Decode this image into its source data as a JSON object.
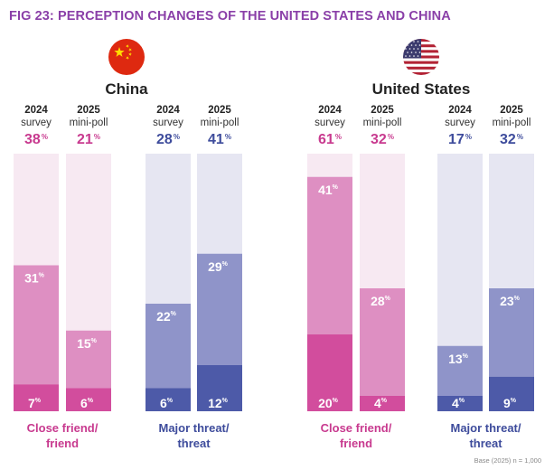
{
  "figure": {
    "title": "FIG 23: PERCEPTION CHANGES OF THE UNITED STATES AND CHINA",
    "base_note": "Base (2025) n = 1,000"
  },
  "colors": {
    "pink_light": "#f7e9f2",
    "pink_mid": "#de8fc2",
    "pink_dark": "#d24d9d",
    "pink_text": "#c83a8f",
    "blue_light": "#e6e6f2",
    "blue_mid": "#8f94c9",
    "blue_dark": "#4d5aa8",
    "blue_text": "#3e4c9c",
    "title": "#8a3fa8"
  },
  "panels": [
    {
      "country": "China",
      "flag_icon": "china-flag-icon",
      "groups": [
        {
          "label_line1": "Close friend/",
          "label_line2": "friend",
          "theme": "pink",
          "columns": [
            {
              "year": "2024",
              "type": "survey",
              "total": 38,
              "top": 31,
              "bottom": 7
            },
            {
              "year": "2025",
              "type": "mini-poll",
              "total": 21,
              "top": 15,
              "bottom": 6
            }
          ]
        },
        {
          "label_line1": "Major threat/",
          "label_line2": "threat",
          "theme": "blue",
          "columns": [
            {
              "year": "2024",
              "type": "survey",
              "total": 28,
              "top": 22,
              "bottom": 6
            },
            {
              "year": "2025",
              "type": "mini-poll",
              "total": 41,
              "top": 29,
              "bottom": 12
            }
          ]
        }
      ]
    },
    {
      "country": "United States",
      "flag_icon": "usa-flag-icon",
      "groups": [
        {
          "label_line1": "Close friend/",
          "label_line2": "friend",
          "theme": "pink",
          "columns": [
            {
              "year": "2024",
              "type": "survey",
              "total": 61,
              "top": 41,
              "bottom": 20
            },
            {
              "year": "2025",
              "type": "mini-poll",
              "total": 32,
              "top": 28,
              "bottom": 4
            }
          ]
        },
        {
          "label_line1": "Major threat/",
          "label_line2": "threat",
          "theme": "blue",
          "columns": [
            {
              "year": "2024",
              "type": "survey",
              "total": 17,
              "top": 13,
              "bottom": 4
            },
            {
              "year": "2025",
              "type": "mini-poll",
              "total": 32,
              "top": 23,
              "bottom": 9
            }
          ]
        }
      ]
    }
  ],
  "chart_data": {
    "type": "bar",
    "stacked": true,
    "title": "FIG 23: PERCEPTION CHANGES OF THE UNITED STATES AND CHINA",
    "ylim": [
      0,
      100
    ],
    "unit": "%",
    "categories": [
      "China 2024 survey",
      "China 2025 mini-poll",
      "China 2024 survey",
      "China 2025 mini-poll",
      "United States 2024 survey",
      "United States 2025 mini-poll",
      "United States 2024 survey",
      "United States 2025 mini-poll"
    ],
    "series": [
      {
        "group": "Close friend/friend",
        "country": "China",
        "x": [
          "2024 survey",
          "2025 mini-poll"
        ],
        "close_friend": [
          7,
          6
        ],
        "friend": [
          31,
          15
        ],
        "total": [
          38,
          21
        ]
      },
      {
        "group": "Major threat/threat",
        "country": "China",
        "x": [
          "2024 survey",
          "2025 mini-poll"
        ],
        "major_threat": [
          6,
          12
        ],
        "threat": [
          22,
          29
        ],
        "total": [
          28,
          41
        ]
      },
      {
        "group": "Close friend/friend",
        "country": "United States",
        "x": [
          "2024 survey",
          "2025 mini-poll"
        ],
        "close_friend": [
          20,
          4
        ],
        "friend": [
          41,
          28
        ],
        "total": [
          61,
          32
        ]
      },
      {
        "group": "Major threat/threat",
        "country": "United States",
        "x": [
          "2024 survey",
          "2025 mini-poll"
        ],
        "major_threat": [
          4,
          9
        ],
        "threat": [
          13,
          23
        ],
        "total": [
          17,
          32
        ]
      }
    ]
  }
}
